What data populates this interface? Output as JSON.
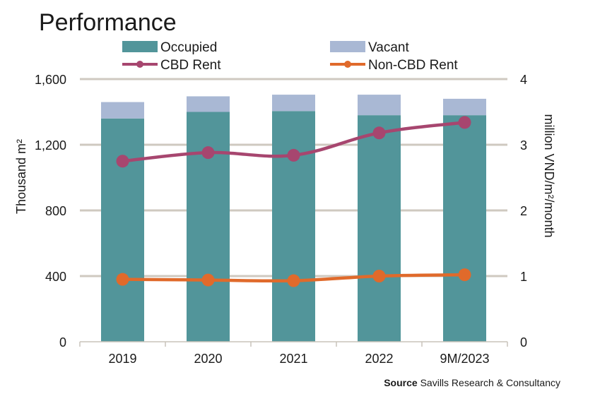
{
  "chart_data": {
    "type": "bar",
    "title": "Performance",
    "categories": [
      "2019",
      "2020",
      "2021",
      "2022",
      "9M/2023"
    ],
    "series": [
      {
        "name": "Occupied",
        "kind": "stacked-bar",
        "axis": "left",
        "color": "#52959a",
        "values": [
          1360,
          1400,
          1405,
          1380,
          1380
        ]
      },
      {
        "name": "Vacant",
        "kind": "stacked-bar",
        "axis": "left",
        "color": "#a9b8d4",
        "values": [
          100,
          95,
          100,
          125,
          100
        ]
      },
      {
        "name": "CBD Rent",
        "kind": "line",
        "axis": "right",
        "color": "#a7466f",
        "values": [
          2.75,
          2.88,
          2.84,
          3.18,
          3.34
        ]
      },
      {
        "name": "Non-CBD Rent",
        "kind": "line",
        "axis": "right",
        "color": "#e06a2b",
        "values": [
          0.95,
          0.94,
          0.93,
          1.0,
          1.02
        ]
      }
    ],
    "ylabel": "Thousand m²",
    "y2label": "million VND/m²/month",
    "ylim": [
      0,
      1600
    ],
    "y2lim": [
      0,
      4
    ],
    "yticks": [
      "0",
      "400",
      "800",
      "1,200",
      "1,600"
    ],
    "y2ticks": [
      "0",
      "1",
      "2",
      "3",
      "4"
    ],
    "grid": true,
    "legend": "top"
  },
  "source": {
    "label": "Source",
    "text": "Savills Research & Consultancy"
  }
}
